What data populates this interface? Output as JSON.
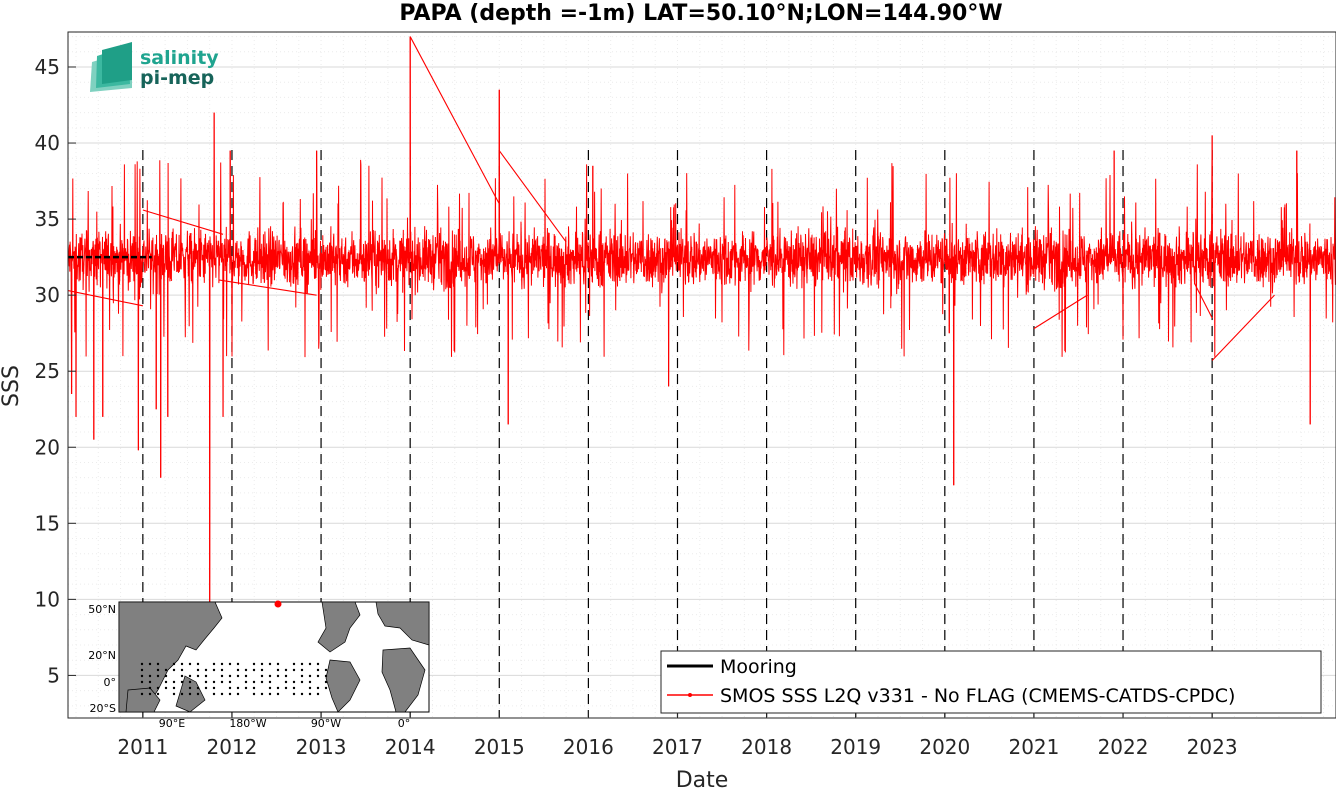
{
  "logo": {
    "line1": "salinity",
    "line2": "pi-mep",
    "color1": "#1fa48f",
    "color2": "#17645a"
  },
  "chart_data": {
    "type": "line",
    "title": "PAPA (depth =-1m) LAT=50.10°N;LON=144.90°W",
    "xlabel": "Date",
    "ylabel": "SSS",
    "ylim": [
      2.2,
      47.3
    ],
    "xlim": [
      2010.16,
      2024.39
    ],
    "yticks": [
      5,
      10,
      15,
      20,
      25,
      30,
      35,
      40,
      45
    ],
    "xticks": [
      {
        "label": "2011",
        "value": 2011
      },
      {
        "label": "2012",
        "value": 2012
      },
      {
        "label": "2013",
        "value": 2013
      },
      {
        "label": "2014",
        "value": 2014
      },
      {
        "label": "2015",
        "value": 2015
      },
      {
        "label": "2016",
        "value": 2016
      },
      {
        "label": "2017",
        "value": 2017
      },
      {
        "label": "2018",
        "value": 2018
      },
      {
        "label": "2019",
        "value": 2019
      },
      {
        "label": "2020",
        "value": 2020
      },
      {
        "label": "2021",
        "value": 2021
      },
      {
        "label": "2022",
        "value": 2022
      },
      {
        "label": "2023",
        "value": 2023
      }
    ],
    "grid": true,
    "legend_position": "bottom-right",
    "series": [
      {
        "name": "Mooring",
        "color": "#000000",
        "points": [
          [
            2010.16,
            32.5
          ],
          [
            2010.5,
            32.5
          ],
          [
            2010.9,
            32.5
          ],
          [
            2011.1,
            32.5
          ]
        ]
      },
      {
        "name": "SMOS SSS L2Q v331 - No FLAG  (CMEMS-CATDS-CPDC)",
        "color": "#ff0000",
        "baseline": 32.4,
        "spikes": [
          [
            2010.2,
            23.5
          ],
          [
            2010.25,
            22.0
          ],
          [
            2010.45,
            20.5
          ],
          [
            2010.55,
            22.0
          ],
          [
            2010.95,
            19.8
          ],
          [
            2011.2,
            18.0
          ],
          [
            2011.15,
            22.5
          ],
          [
            2011.28,
            22.0
          ],
          [
            2011.75,
            9.5
          ],
          [
            2011.8,
            42.0
          ],
          [
            2011.9,
            22.0
          ],
          [
            2011.98,
            39.5
          ],
          [
            2012.95,
            39.5
          ],
          [
            2014.0,
            47.0
          ],
          [
            2015.0,
            43.5
          ],
          [
            2015.1,
            21.5
          ],
          [
            2016.05,
            38.5
          ],
          [
            2016.9,
            24.0
          ],
          [
            2020.1,
            17.5
          ],
          [
            2020.05,
            27.5
          ],
          [
            2021.9,
            39.5
          ],
          [
            2023.0,
            40.5
          ],
          [
            2023.95,
            39.5
          ],
          [
            2024.1,
            21.5
          ]
        ],
        "connectors": [
          [
            [
              2010.16,
              30.3
            ],
            [
              2011.0,
              29.3
            ]
          ],
          [
            [
              2011.0,
              35.6
            ],
            [
              2011.9,
              34.0
            ]
          ],
          [
            [
              2011.85,
              31.0
            ],
            [
              2012.95,
              30.0
            ]
          ],
          [
            [
              2014.0,
              47.0
            ],
            [
              2015.0,
              36.0
            ]
          ],
          [
            [
              2015.0,
              39.5
            ],
            [
              2015.75,
              33.5
            ]
          ],
          [
            [
              2021.0,
              27.8
            ],
            [
              2021.6,
              30.0
            ]
          ],
          [
            [
              2022.8,
              30.8
            ],
            [
              2023.0,
              28.5
            ]
          ],
          [
            [
              2023.0,
              25.7
            ],
            [
              2023.7,
              30.0
            ]
          ]
        ]
      }
    ]
  },
  "inset_map": {
    "ylabels": [
      "50°N",
      "20°N",
      "0°",
      "20°S"
    ],
    "xlabels": [
      "90°E",
      "180°W",
      "90°W",
      "0°"
    ],
    "station_color": "#ff0000",
    "land_color": "#808080"
  }
}
